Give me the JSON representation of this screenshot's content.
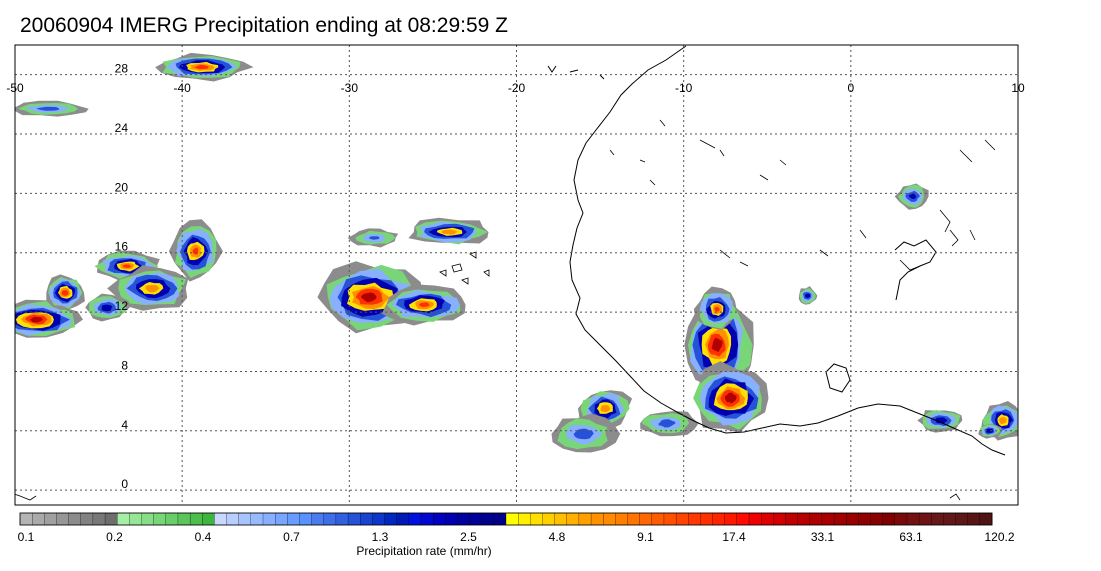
{
  "title": "20060904 IMERG Precipitation ending at 08:29:59 Z",
  "map": {
    "lon_range": [
      -50,
      10
    ],
    "lat_range": [
      -1,
      30
    ],
    "lon_labels": [
      "-50",
      "-40",
      "-30",
      "-20",
      "-10",
      "0",
      "10"
    ],
    "lat_labels": [
      "28",
      "24",
      "20",
      "16",
      "12",
      "8",
      "4",
      "0"
    ],
    "gridlines": "dotted",
    "coastline_color": "#000000"
  },
  "colorbar": {
    "title": "Precipitation rate (mm/hr)",
    "tick_labels": [
      "0.1",
      "0.2",
      "0.4",
      "0.7",
      "1.3",
      "2.5",
      "4.8",
      "9.1",
      "17.4",
      "33.1",
      "63.1",
      "120.2"
    ],
    "colors": [
      "#b4b4b4",
      "#aaaaaa",
      "#a0a0a0",
      "#969696",
      "#8c8c8c",
      "#828282",
      "#787878",
      "#6e6e6e",
      "#a5eea5",
      "#96e696",
      "#87de87",
      "#78d678",
      "#69ce69",
      "#5ac65a",
      "#4bbe4b",
      "#3cb63c",
      "#c8d8ff",
      "#b8ceff",
      "#a8c4ff",
      "#98baff",
      "#88b0ff",
      "#78a6ff",
      "#689cff",
      "#5892ff",
      "#4a7cf0",
      "#3e6ee8",
      "#3260e0",
      "#2652d8",
      "#1a44d0",
      "#0e36c8",
      "#0028c0",
      "#001ab8",
      "#0010e0",
      "#0008d0",
      "#0000c0",
      "#0000b0",
      "#0000a0",
      "#000098",
      "#000090",
      "#000088",
      "#ffff00",
      "#fff000",
      "#ffe000",
      "#ffd000",
      "#ffc000",
      "#ffb000",
      "#ffa000",
      "#ff9000",
      "#ff8c00",
      "#ff8000",
      "#ff7400",
      "#ff6800",
      "#ff5c00",
      "#ff5000",
      "#ff4400",
      "#ff3800",
      "#ff3000",
      "#ff2400",
      "#ff1800",
      "#ff0c00",
      "#f00000",
      "#e00000",
      "#d00000",
      "#c00000",
      "#b80000",
      "#b00000",
      "#a80000",
      "#a00000",
      "#980000",
      "#900000",
      "#880000",
      "#800000",
      "#7a0a0a",
      "#741010",
      "#6e1414",
      "#681818",
      "#621818",
      "#5c1818",
      "#561616",
      "#501414"
    ]
  },
  "precip_systems": [
    {
      "lon": -48.7,
      "lat": 11.5,
      "rx": 2.8,
      "ry": 1.3,
      "peak": 1.0
    },
    {
      "lon": -47.0,
      "lat": 13.3,
      "rx": 1.2,
      "ry": 1.2,
      "peak": 0.9
    },
    {
      "lon": -43.3,
      "lat": 15.1,
      "rx": 2.0,
      "ry": 1.0,
      "peak": 0.85
    },
    {
      "lon": -41.8,
      "lat": 13.6,
      "rx": 2.4,
      "ry": 1.5,
      "peak": 0.8
    },
    {
      "lon": -39.2,
      "lat": 16.1,
      "rx": 1.5,
      "ry": 2.0,
      "peak": 0.85
    },
    {
      "lon": -44.5,
      "lat": 12.3,
      "rx": 1.3,
      "ry": 0.9,
      "peak": 0.6
    },
    {
      "lon": -28.8,
      "lat": 13.0,
      "rx": 3.3,
      "ry": 2.3,
      "peak": 1.0
    },
    {
      "lon": -25.5,
      "lat": 12.5,
      "rx": 2.6,
      "ry": 1.3,
      "peak": 0.85
    },
    {
      "lon": -24.0,
      "lat": 17.4,
      "rx": 2.6,
      "ry": 0.9,
      "peak": 0.8
    },
    {
      "lon": -28.5,
      "lat": 17.0,
      "rx": 1.5,
      "ry": 0.6,
      "peak": 0.4
    },
    {
      "lon": -38.8,
      "lat": 28.5,
      "rx": 2.8,
      "ry": 0.9,
      "peak": 0.9
    },
    {
      "lon": -48.0,
      "lat": 25.7,
      "rx": 2.3,
      "ry": 0.5,
      "peak": 0.45
    },
    {
      "lon": -8.0,
      "lat": 9.8,
      "rx": 2.2,
      "ry": 3.2,
      "peak": 1.0
    },
    {
      "lon": -7.2,
      "lat": 6.2,
      "rx": 2.4,
      "ry": 2.3,
      "peak": 1.0
    },
    {
      "lon": -8.0,
      "lat": 12.2,
      "rx": 1.3,
      "ry": 1.4,
      "peak": 0.85
    },
    {
      "lon": -14.7,
      "lat": 5.5,
      "rx": 1.6,
      "ry": 1.4,
      "peak": 0.8
    },
    {
      "lon": -16.0,
      "lat": 3.8,
      "rx": 2.0,
      "ry": 1.3,
      "peak": 0.45
    },
    {
      "lon": -11.0,
      "lat": 4.5,
      "rx": 1.8,
      "ry": 0.9,
      "peak": 0.45
    },
    {
      "lon": -2.6,
      "lat": 13.1,
      "rx": 0.6,
      "ry": 0.6,
      "peak": 0.6
    },
    {
      "lon": 3.7,
      "lat": 19.8,
      "rx": 1.0,
      "ry": 0.9,
      "peak": 0.55
    },
    {
      "lon": 5.4,
      "lat": 4.7,
      "rx": 1.4,
      "ry": 0.8,
      "peak": 0.6
    },
    {
      "lon": 9.1,
      "lat": 4.7,
      "rx": 1.3,
      "ry": 1.3,
      "peak": 0.8
    },
    {
      "lon": 8.3,
      "lat": 4.0,
      "rx": 0.7,
      "ry": 0.5,
      "peak": 0.65
    }
  ]
}
